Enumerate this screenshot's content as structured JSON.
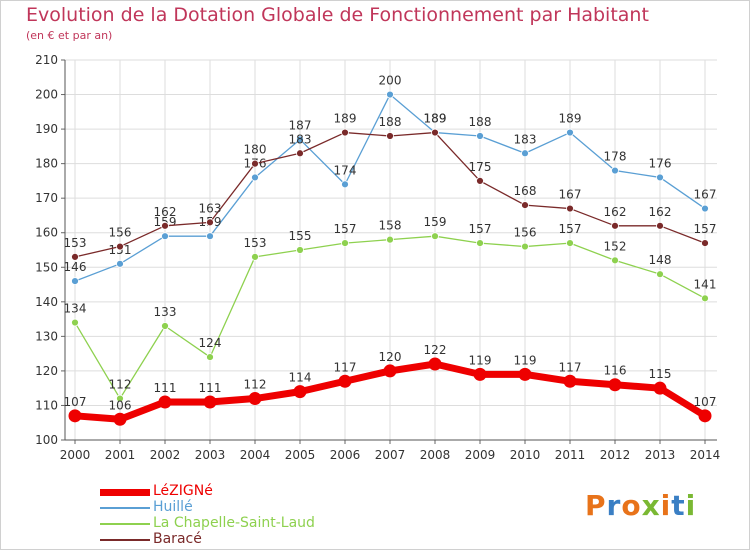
{
  "title": "Evolution de la Dotation Globale de Fonctionnement par Habitant",
  "subtitle": "(en € et par an)",
  "logo": {
    "letters": [
      "P",
      "r",
      "o",
      "x",
      "i",
      "t",
      "i"
    ],
    "colors": [
      "#e8731a",
      "#3a7fc4",
      "#e8731a",
      "#7ab833",
      "#e8731a",
      "#3a7fc4",
      "#7ab833"
    ]
  },
  "chart_data": {
    "type": "line",
    "x": [
      "2000",
      "2001",
      "2002",
      "2003",
      "2004",
      "2005",
      "2006",
      "2007",
      "2008",
      "2009",
      "2010",
      "2011",
      "2012",
      "2013",
      "2014"
    ],
    "ylim": [
      100,
      210
    ],
    "yticks": [
      100,
      110,
      120,
      130,
      140,
      150,
      160,
      170,
      180,
      190,
      200,
      210
    ],
    "grid": true,
    "legend_position": "bottom-left",
    "series": [
      {
        "name": "Huillé",
        "color": "#5a9fd4",
        "values": [
          146,
          151,
          159,
          159,
          176,
          187,
          174,
          200,
          189,
          188,
          183,
          189,
          178,
          176,
          167
        ],
        "labels": [
          "146",
          "151",
          "159",
          "159",
          "176",
          "187",
          "174",
          "200",
          "189",
          "188",
          "183",
          "189",
          "178",
          "176",
          "167"
        ]
      },
      {
        "name": "Baracé",
        "color": "#7a2a2a",
        "values": [
          153,
          156,
          162,
          163,
          180,
          183,
          189,
          188,
          189,
          175,
          168,
          167,
          162,
          162,
          157
        ],
        "labels": [
          "153",
          "156",
          "162",
          "163",
          "180",
          "183",
          "189",
          "188",
          "189",
          "175",
          "168",
          "167",
          "162",
          "162",
          "157"
        ]
      },
      {
        "name": "La Chapelle-Saint-Laud",
        "color": "#8ed14f",
        "values": [
          134,
          112,
          133,
          124,
          153,
          155,
          157,
          158,
          159,
          157,
          156,
          157,
          152,
          148,
          141
        ],
        "labels": [
          "134",
          "112",
          "133",
          "124",
          "153",
          "155",
          "157",
          "158",
          "159",
          "157",
          "156",
          "157",
          "152",
          "148",
          "141"
        ]
      },
      {
        "name": "LéZIGNé",
        "color": "#ee0000",
        "values": [
          107,
          106,
          111,
          111,
          112,
          114,
          117,
          120,
          122,
          119,
          119,
          117,
          116,
          115,
          107
        ],
        "labels": [
          "107",
          "106",
          "111",
          "111",
          "112",
          "114",
          "117",
          "120",
          "122",
          "119",
          "119",
          "117",
          "116",
          "115",
          "107"
        ]
      }
    ],
    "legend": [
      {
        "name": "LéZIGNé",
        "color": "#ee0000"
      },
      {
        "name": "Huillé",
        "color": "#5a9fd4"
      },
      {
        "name": "La Chapelle-Saint-Laud",
        "color": "#8ed14f"
      },
      {
        "name": "Baracé",
        "color": "#7a2a2a"
      }
    ]
  }
}
